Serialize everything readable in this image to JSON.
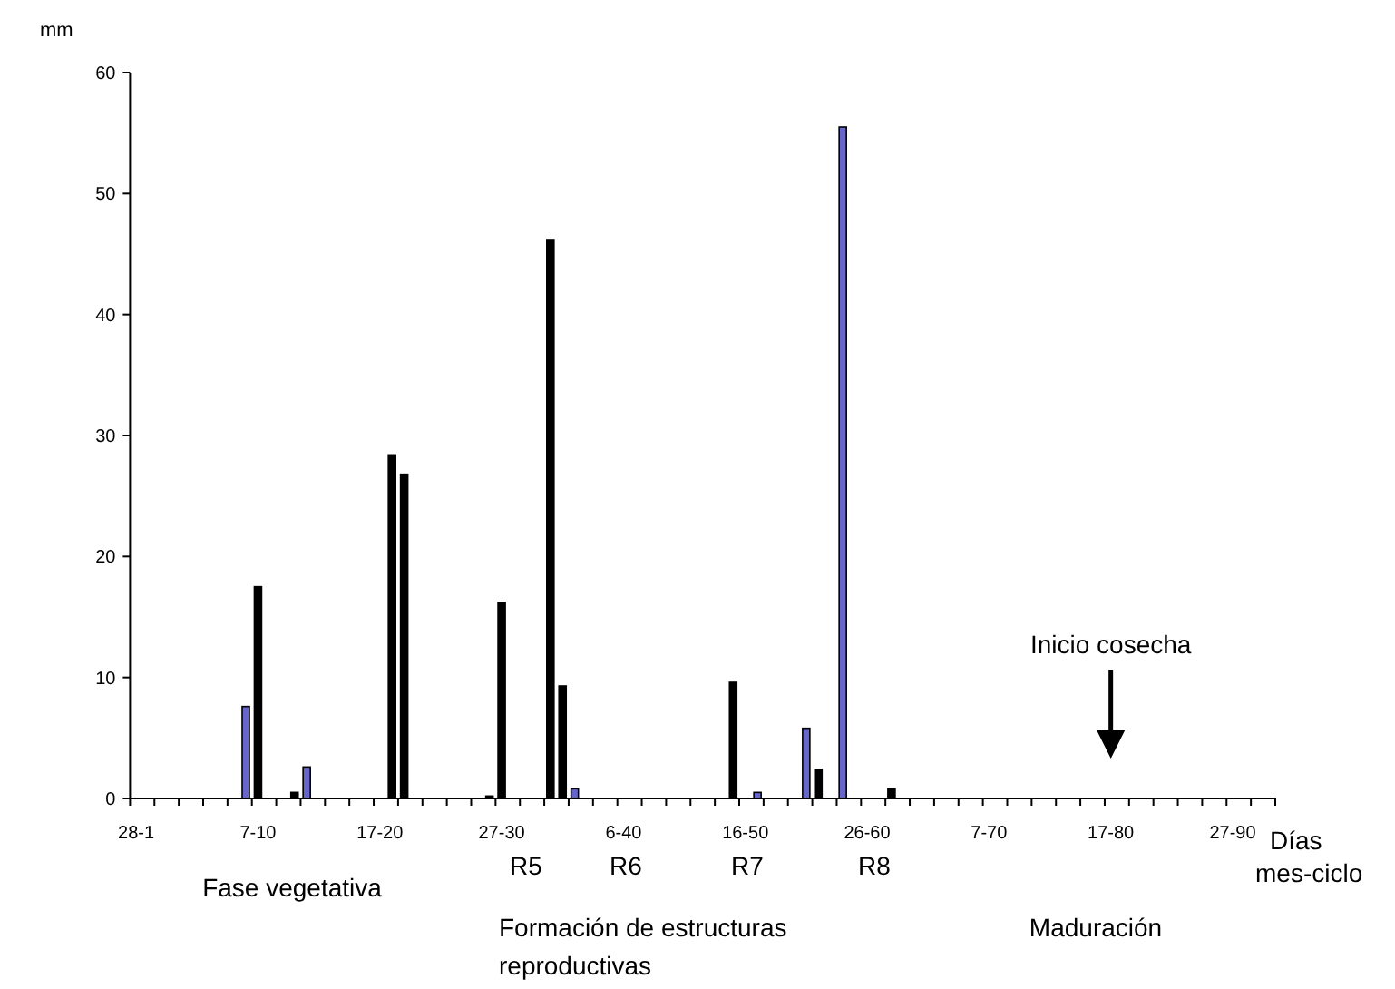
{
  "chart_data": {
    "type": "bar",
    "xlabel": "Días mes-ciclo",
    "ylabel": "mm",
    "categories": [
      "28-1",
      null,
      null,
      null,
      null,
      null,
      null,
      null,
      null,
      null,
      "7-10",
      null,
      null,
      null,
      null,
      null,
      null,
      null,
      null,
      null,
      "17-20",
      null,
      null,
      null,
      null,
      null,
      null,
      null,
      null,
      null,
      "27-30",
      null,
      null,
      null,
      null,
      null,
      null,
      null,
      null,
      null,
      "6-40",
      null,
      null,
      null,
      null,
      null,
      null,
      null,
      null,
      null,
      "16-50",
      null,
      null,
      null,
      null,
      null,
      null,
      null,
      null,
      null,
      "26-60",
      null,
      null,
      null,
      null,
      null,
      null,
      null,
      null,
      null,
      "7-70",
      null,
      null,
      null,
      null,
      null,
      null,
      null,
      null,
      null,
      "17-80",
      null,
      null,
      null,
      null,
      null,
      null,
      null,
      null,
      null,
      "27-90",
      null,
      null,
      null
    ],
    "values": [
      0,
      0,
      0,
      0,
      0,
      0,
      0,
      0,
      0,
      7.6,
      17.5,
      0,
      0,
      0.5,
      2.6,
      0,
      0,
      0,
      0,
      0,
      0,
      28.4,
      26.8,
      0,
      0,
      0,
      0,
      0,
      0,
      0.2,
      16.2,
      0,
      0,
      0,
      46.2,
      9.3,
      0.8,
      0,
      0,
      0,
      0,
      0,
      0,
      0,
      0,
      0,
      0,
      0,
      0,
      9.6,
      0,
      0.5,
      0,
      0,
      0,
      5.8,
      2.4,
      0,
      55.5,
      0,
      0,
      0,
      0.8,
      0,
      0,
      0,
      0,
      0,
      0,
      0,
      0,
      0,
      0,
      0,
      0,
      0,
      0,
      0,
      0,
      0,
      0,
      0,
      0,
      0,
      0,
      0,
      0,
      0,
      0,
      0,
      0,
      0,
      0,
      0
    ],
    "colors": [
      "#000000",
      "#000000",
      "#000000",
      "#000000",
      "#000000",
      "#000000",
      "#000000",
      "#000000",
      "#000000",
      "#6666cc",
      "#000000",
      "#000000",
      "#000000",
      "#000000",
      "#6666cc",
      "#000000",
      "#000000",
      "#000000",
      "#000000",
      "#000000",
      "#000000",
      "#000000",
      "#000000",
      "#000000",
      "#000000",
      "#000000",
      "#000000",
      "#000000",
      "#000000",
      "#000000",
      "#000000",
      "#000000",
      "#000000",
      "#000000",
      "#000000",
      "#000000",
      "#6666cc",
      "#000000",
      "#000000",
      "#000000",
      "#000000",
      "#000000",
      "#000000",
      "#000000",
      "#000000",
      "#000000",
      "#000000",
      "#000000",
      "#000000",
      "#000000",
      "#000000",
      "#6666cc",
      "#000000",
      "#000000",
      "#000000",
      "#6666cc",
      "#000000",
      "#000000",
      "#6666cc",
      "#000000",
      "#000000",
      "#000000",
      "#000000",
      "#000000",
      "#000000",
      "#000000",
      "#000000",
      "#000000",
      "#000000",
      "#000000",
      "#000000",
      "#000000",
      "#000000",
      "#000000",
      "#000000",
      "#000000",
      "#000000",
      "#000000",
      "#000000",
      "#000000",
      "#000000",
      "#000000",
      "#000000",
      "#000000",
      "#000000",
      "#000000",
      "#000000",
      "#000000",
      "#000000",
      "#000000",
      "#000000",
      "#000000",
      "#000000",
      "#000000"
    ],
    "ylim": [
      0,
      60
    ],
    "yticks": [
      0,
      10,
      20,
      30,
      40,
      50,
      60
    ],
    "grid": false,
    "annotations": [
      "Fase vegetativa",
      "R5",
      "R6",
      "R7",
      "R8",
      "Formación de estructuras reproductivas",
      "Maduración",
      {
        "text": "Inicio cosecha",
        "x": "17-80"
      }
    ]
  }
}
